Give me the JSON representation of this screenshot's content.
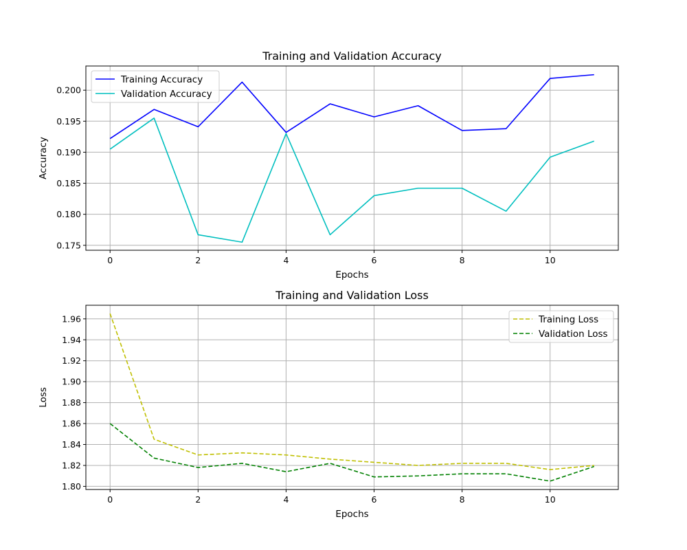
{
  "chart_data": [
    {
      "type": "line",
      "title": "Training and Validation Accuracy",
      "xlabel": "Epochs",
      "ylabel": "Accuracy",
      "xlim": [
        -0.55,
        11.55
      ],
      "ylim": [
        0.1742,
        0.2039
      ],
      "xticks": [
        0,
        2,
        4,
        6,
        8,
        10
      ],
      "xtick_labels": [
        "0",
        "2",
        "4",
        "6",
        "8",
        "10"
      ],
      "yticks": [
        0.175,
        0.18,
        0.185,
        0.19,
        0.195,
        0.2
      ],
      "ytick_labels": [
        "0.175",
        "0.180",
        "0.185",
        "0.190",
        "0.195",
        "0.200"
      ],
      "grid": true,
      "legend_position": "upper-left",
      "x": [
        0,
        1,
        2,
        3,
        4,
        5,
        6,
        7,
        8,
        9,
        10,
        11
      ],
      "series": [
        {
          "name": "Training Accuracy",
          "color": "#0000ff",
          "line_style": "solid",
          "values": [
            0.1922,
            0.1969,
            0.1941,
            0.2013,
            0.1932,
            0.1978,
            0.1957,
            0.1975,
            0.1935,
            0.1938,
            0.2019,
            0.2025
          ]
        },
        {
          "name": "Validation Accuracy",
          "color": "#00bfbf",
          "line_style": "solid",
          "values": [
            0.1905,
            0.1955,
            0.1767,
            0.1755,
            0.193,
            0.1767,
            0.183,
            0.1842,
            0.1842,
            0.1805,
            0.1892,
            0.1918
          ]
        }
      ]
    },
    {
      "type": "line",
      "title": "Training and Validation Loss",
      "xlabel": "Epochs",
      "ylabel": "Loss",
      "xlim": [
        -0.55,
        11.55
      ],
      "ylim": [
        1.797,
        1.973
      ],
      "xticks": [
        0,
        2,
        4,
        6,
        8,
        10
      ],
      "xtick_labels": [
        "0",
        "2",
        "4",
        "6",
        "8",
        "10"
      ],
      "yticks": [
        1.8,
        1.82,
        1.84,
        1.86,
        1.88,
        1.9,
        1.92,
        1.94,
        1.96
      ],
      "ytick_labels": [
        "1.80",
        "1.82",
        "1.84",
        "1.86",
        "1.88",
        "1.90",
        "1.92",
        "1.94",
        "1.96"
      ],
      "grid": true,
      "legend_position": "upper-right",
      "x": [
        0,
        1,
        2,
        3,
        4,
        5,
        6,
        7,
        8,
        9,
        10,
        11
      ],
      "series": [
        {
          "name": "Training Loss",
          "color": "#bfbf00",
          "line_style": "dashed",
          "values": [
            1.965,
            1.845,
            1.83,
            1.832,
            1.83,
            1.826,
            1.823,
            1.82,
            1.822,
            1.822,
            1.816,
            1.82
          ]
        },
        {
          "name": "Validation Loss",
          "color": "#008000",
          "line_style": "dashed",
          "values": [
            1.86,
            1.827,
            1.818,
            1.822,
            1.814,
            1.822,
            1.809,
            1.81,
            1.812,
            1.812,
            1.805,
            1.819
          ]
        }
      ]
    }
  ]
}
